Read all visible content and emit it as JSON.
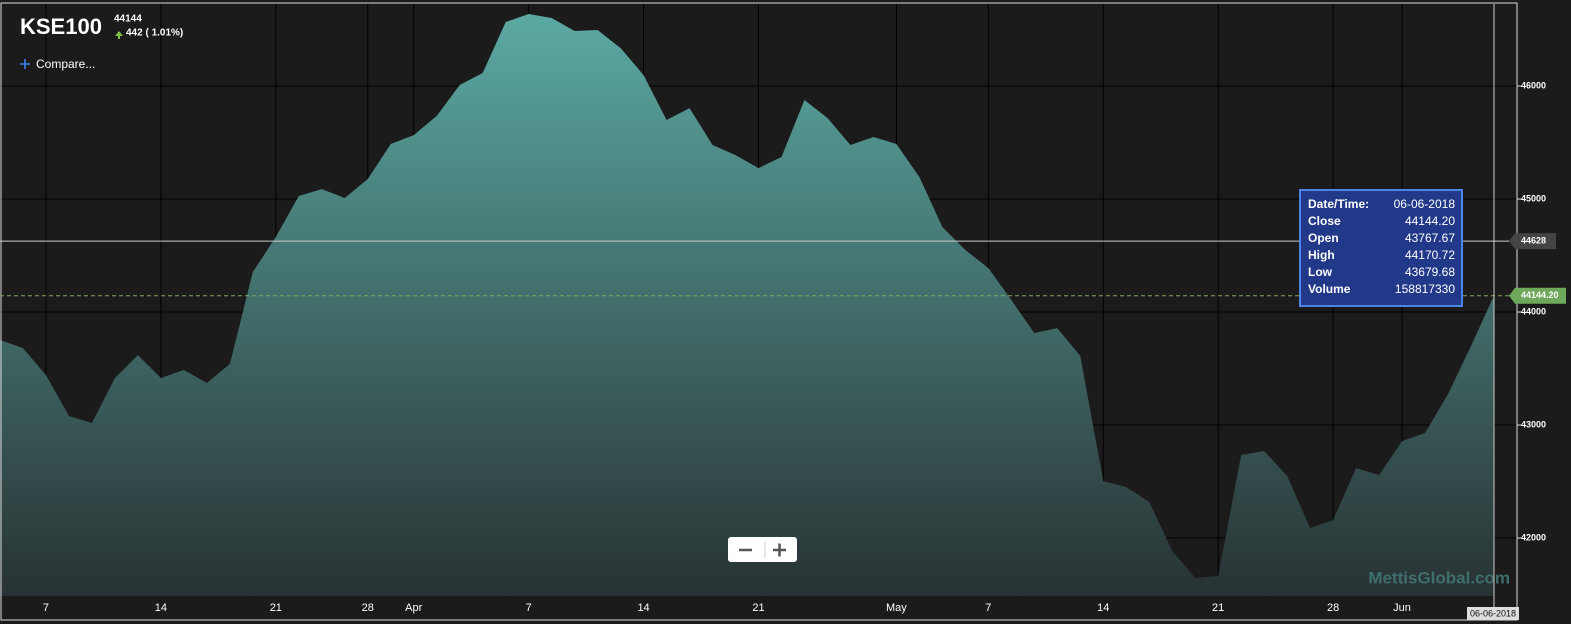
{
  "header": {
    "symbol": "KSE100",
    "price": "44144",
    "change": "442 ( 1.01%)",
    "compare": "Compare..."
  },
  "chart_data": {
    "type": "area",
    "categories": [
      null,
      null,
      "7",
      null,
      null,
      null,
      null,
      "14",
      null,
      null,
      null,
      null,
      "21",
      null,
      null,
      null,
      "28",
      null,
      "Apr",
      null,
      null,
      null,
      null,
      "7",
      null,
      null,
      null,
      null,
      "14",
      null,
      null,
      null,
      null,
      "21",
      null,
      null,
      null,
      null,
      null,
      "May",
      null,
      null,
      null,
      "7",
      null,
      null,
      null,
      null,
      "14",
      null,
      null,
      null,
      null,
      "21",
      null,
      null,
      null,
      null,
      "28",
      null,
      null,
      "Jun",
      null,
      null,
      null,
      null
    ],
    "values": [
      43752,
      43681,
      43442,
      43080,
      43018,
      43416,
      43619,
      43416,
      43487,
      43372,
      43540,
      44354,
      44664,
      45027,
      45088,
      45009,
      45177,
      45487,
      45566,
      45735,
      46009,
      46115,
      46566,
      46637,
      46602,
      46487,
      46496,
      46336,
      46097,
      45699,
      45805,
      45478,
      45389,
      45274,
      45372,
      45876,
      45717,
      45478,
      45549,
      45487,
      45195,
      44752,
      44549,
      44389,
      44106,
      43814,
      43858,
      43611,
      42504,
      42451,
      42319,
      41885,
      41646,
      41664,
      42735,
      42770,
      42549,
      42088,
      42159,
      42619,
      42558,
      42858,
      42929,
      43274,
      43699,
      44144.2
    ],
    "gradient": [
      "#5ba9a2",
      "#283233"
    ],
    "ylim": [
      41487,
      46726
    ],
    "yticks": [
      42000,
      43000,
      44000,
      45000,
      46000
    ],
    "grid": true,
    "crosshair": {
      "y": 44628,
      "x_label": "06-06-2018"
    },
    "last_price": {
      "value": 44144.2,
      "label": "44144.20"
    },
    "tooltip": [
      [
        "Date/Time:",
        "06-06-2018"
      ],
      [
        "Close",
        "44144.20"
      ],
      [
        "Open",
        "43767.67"
      ],
      [
        "High",
        "44170.72"
      ],
      [
        "Low",
        "43679.68"
      ],
      [
        "Volume",
        "158817330"
      ]
    ],
    "watermark": "MettisGlobal.com"
  }
}
